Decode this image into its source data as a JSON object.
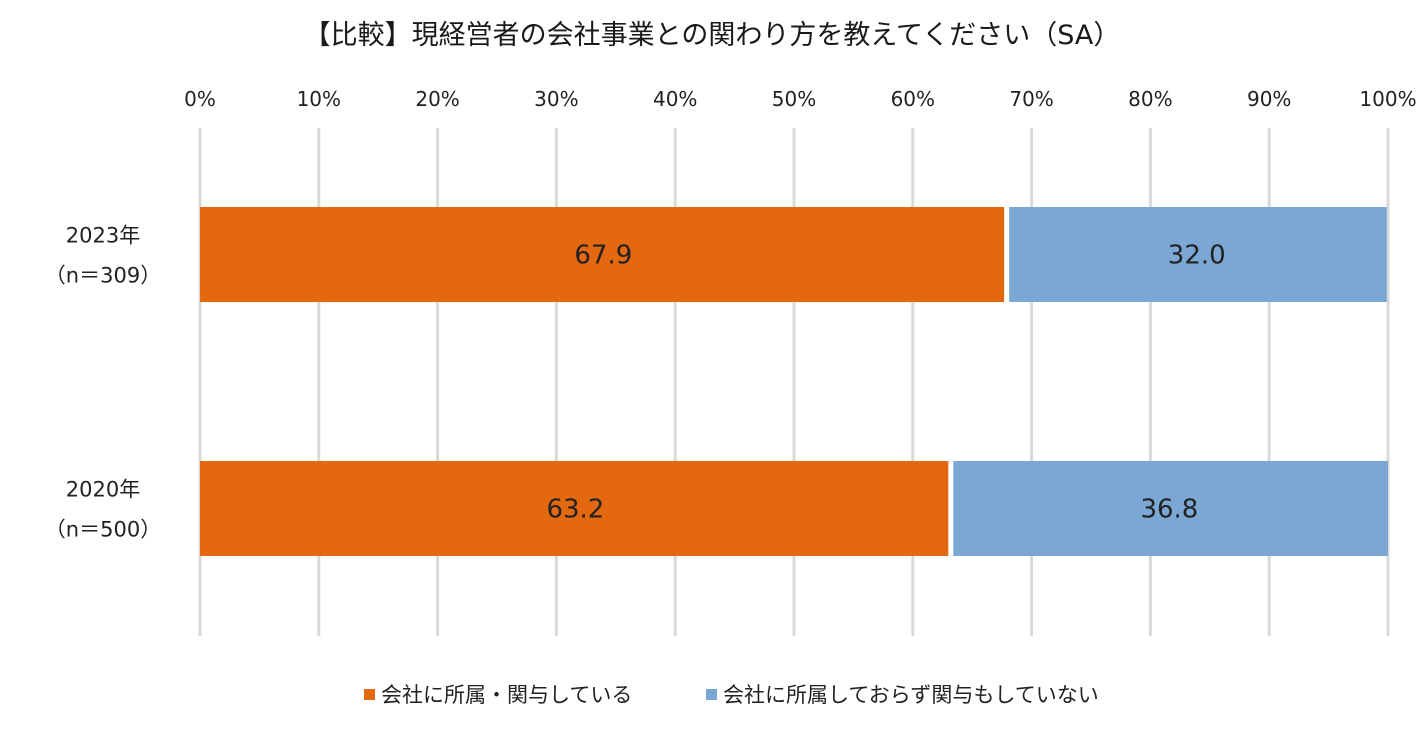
{
  "chart_data": {
    "type": "bar",
    "orientation": "horizontal",
    "stacked": true,
    "title": "【比較】現経営者の会社事業との関わり方を教えてください（SA）",
    "xaxis": {
      "min": 0,
      "max": 100,
      "ticks": [
        0,
        10,
        20,
        30,
        40,
        50,
        60,
        70,
        80,
        90,
        100
      ],
      "tick_labels": [
        "0%",
        "10%",
        "20%",
        "30%",
        "40%",
        "50%",
        "60%",
        "70%",
        "80%",
        "90%",
        "100%"
      ],
      "position": "top"
    },
    "categories": [
      {
        "line1": "2023年",
        "line2": "（n＝309）"
      },
      {
        "line1": "2020年",
        "line2": "（n＝500）"
      }
    ],
    "series": [
      {
        "name": "会社に所属・関与している",
        "color": "#E46810",
        "values": [
          67.9,
          63.2
        ],
        "labels": [
          "67.9",
          "63.2"
        ]
      },
      {
        "name": "会社に所属しておらず関与もしていない",
        "color": "#7BA7D4",
        "values": [
          32.0,
          36.8
        ],
        "labels": [
          "32.0",
          "36.8"
        ]
      }
    ],
    "grid": true,
    "legend_position": "bottom"
  }
}
